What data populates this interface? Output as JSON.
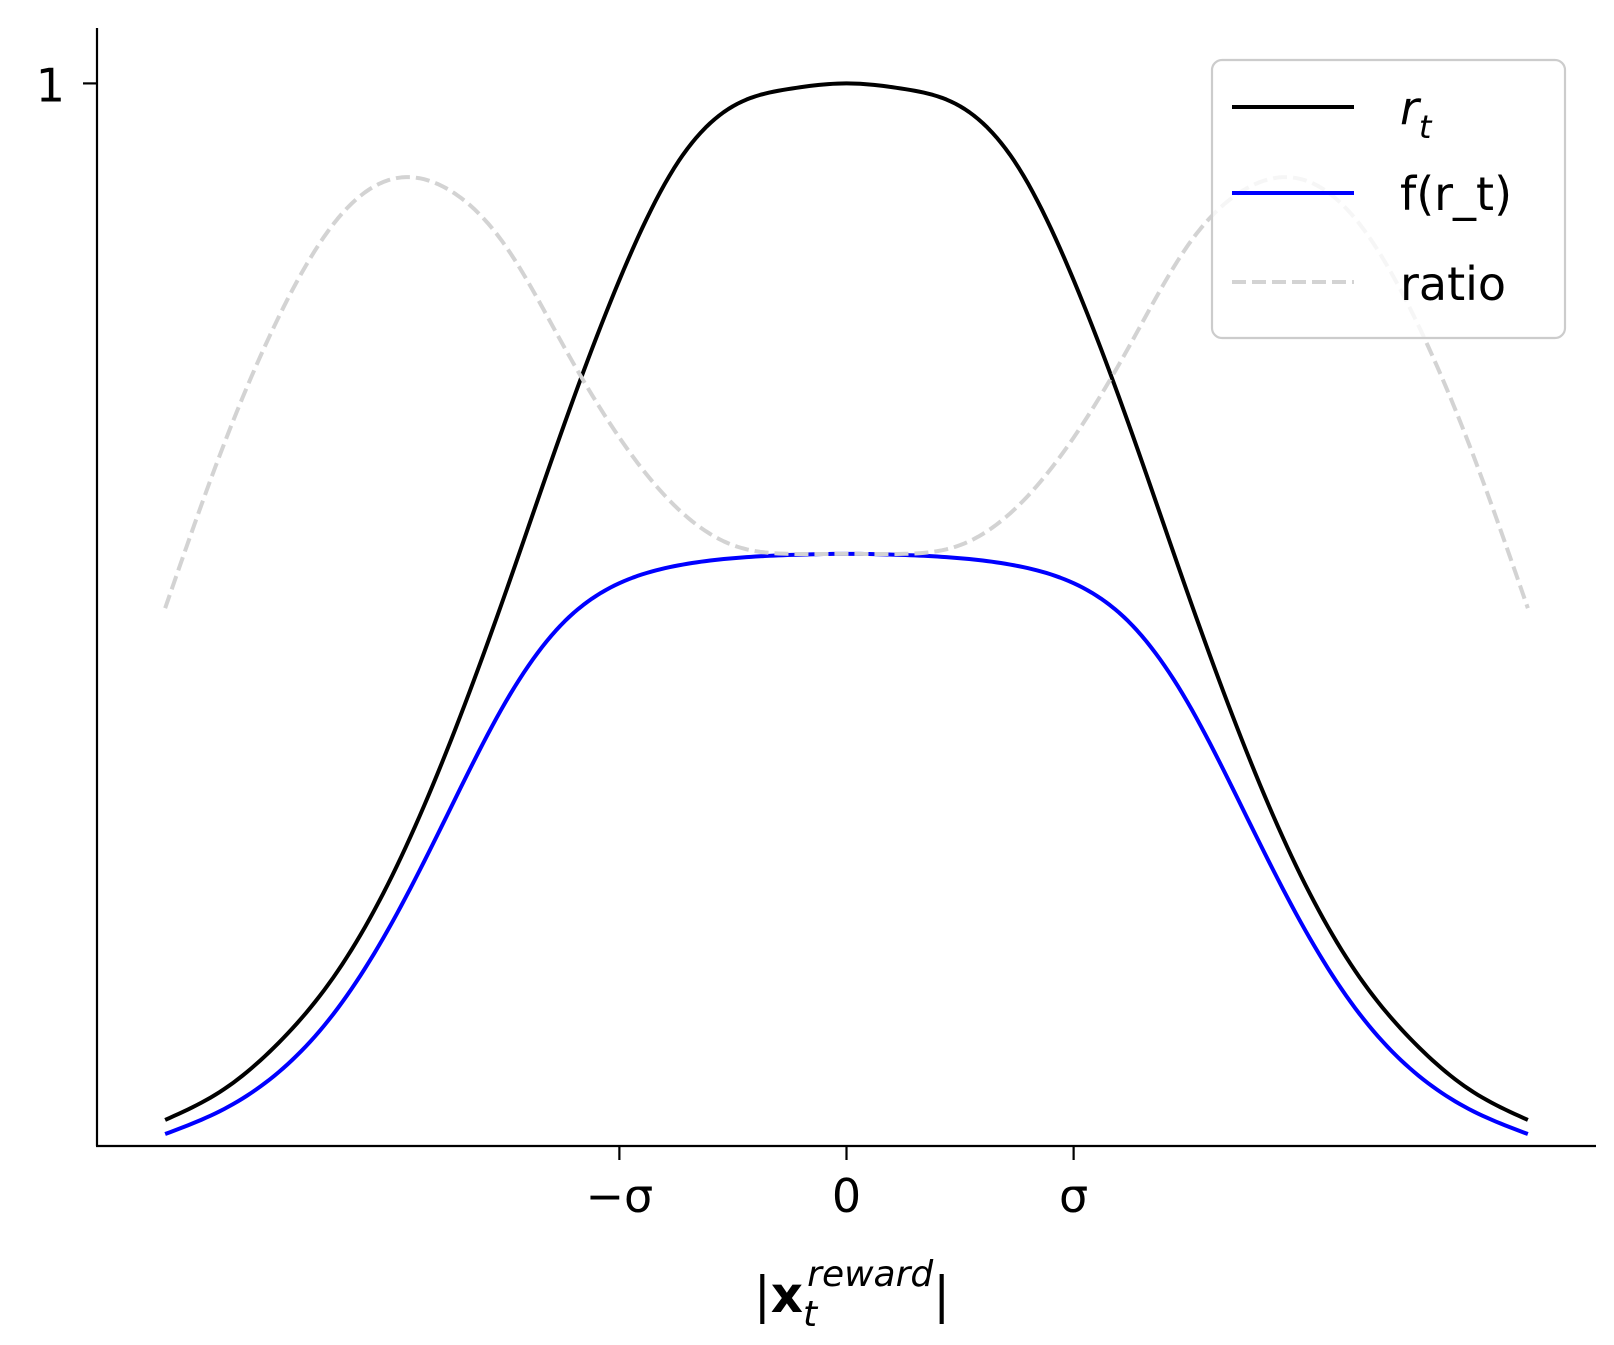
{
  "chart_data": {
    "type": "line",
    "xlabel": {
      "prefix": "|",
      "bold": "x",
      "subscript": "t",
      "superscript": "reward",
      "suffix": "|"
    },
    "x_ticks": [
      {
        "value": -1,
        "label": "−σ"
      },
      {
        "value": 0,
        "label": "0"
      },
      {
        "value": 1,
        "label": "σ"
      }
    ],
    "y_ticks": [
      {
        "value": 1,
        "label": "1"
      }
    ],
    "xlim": [
      -3.3,
      3.3
    ],
    "ylim": [
      0.022,
      1.051
    ],
    "grid": false,
    "legend_position": "top-right",
    "x": [
      -3.0,
      -2.75,
      -2.5,
      -2.25,
      -2.0,
      -1.75,
      -1.5,
      -1.25,
      -1.0,
      -0.75,
      -0.5,
      -0.25,
      0.0,
      0.25,
      0.5,
      0.75,
      1.0,
      1.25,
      1.5,
      1.75,
      2.0,
      2.25,
      2.5,
      2.75,
      3.0
    ],
    "series": [
      {
        "name": "r",
        "name_subscript": "t",
        "color": "#000000",
        "dash": "solid",
        "values": [
          0.046,
          0.073,
          0.117,
          0.18,
          0.271,
          0.391,
          0.532,
          0.682,
          0.819,
          0.925,
          0.979,
          0.995,
          1.0,
          0.995,
          0.979,
          0.925,
          0.819,
          0.682,
          0.532,
          0.391,
          0.271,
          0.18,
          0.117,
          0.073,
          0.046
        ]
      },
      {
        "name": "f(r_t)",
        "color": "#0000ff",
        "dash": "solid",
        "values": [
          0.033,
          0.055,
          0.09,
          0.146,
          0.228,
          0.33,
          0.431,
          0.503,
          0.54,
          0.556,
          0.563,
          0.566,
          0.567,
          0.566,
          0.563,
          0.556,
          0.54,
          0.503,
          0.431,
          0.33,
          0.228,
          0.146,
          0.09,
          0.055,
          0.033
        ]
      },
      {
        "name": "ratio",
        "color": "#d3d3d3",
        "dash": "dashed",
        "values": [
          0.517,
          0.663,
          0.785,
          0.873,
          0.912,
          0.902,
          0.85,
          0.76,
          0.674,
          0.61,
          0.575,
          0.567,
          0.567,
          0.567,
          0.575,
          0.61,
          0.674,
          0.76,
          0.85,
          0.902,
          0.912,
          0.873,
          0.785,
          0.663,
          0.517
        ]
      }
    ]
  }
}
